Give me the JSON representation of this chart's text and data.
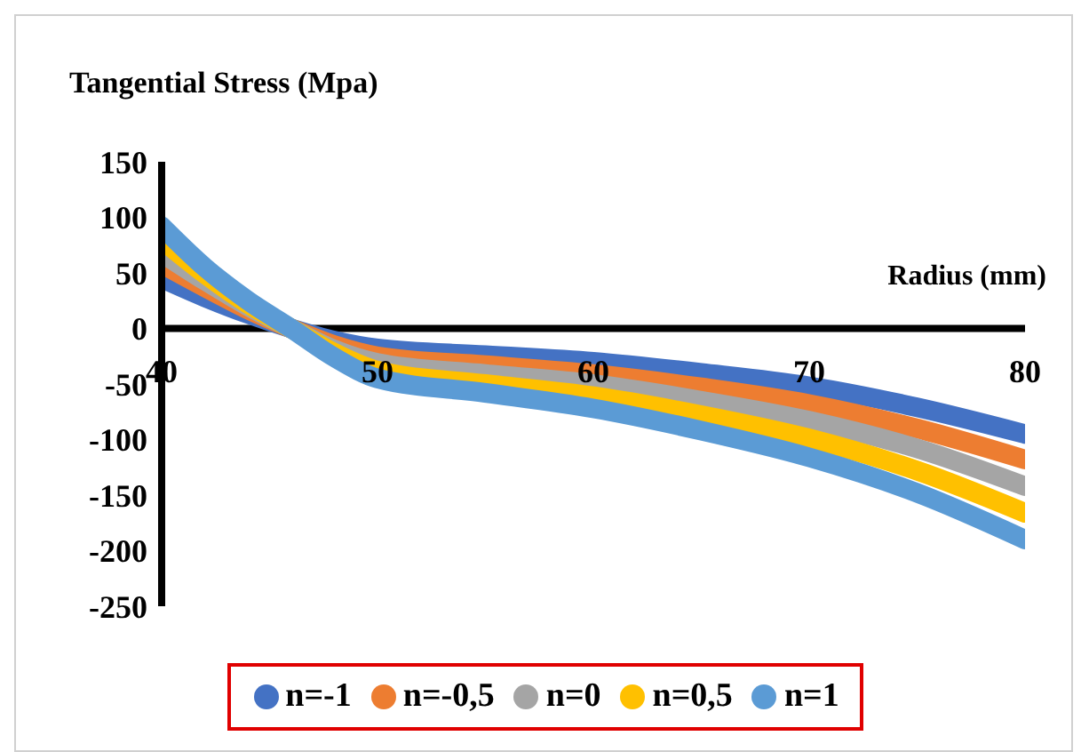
{
  "chart_data": {
    "type": "line",
    "title": "Tangential Stress (Mpa)",
    "xlabel": "Radius (mm)",
    "x": [
      40,
      42,
      44,
      46,
      48,
      50,
      55,
      60,
      65,
      70,
      75,
      80
    ],
    "series": [
      {
        "name": "n=-1",
        "color": "#4472c4",
        "values": [
          45,
          28,
          13,
          0,
          -11,
          -18,
          -24,
          -30,
          -40,
          -52,
          -71,
          -95
        ]
      },
      {
        "name": "n=-0,5",
        "color": "#ed7d31",
        "values": [
          58,
          37,
          17,
          0,
          -15,
          -25,
          -33,
          -41,
          -53,
          -68,
          -90,
          -118
        ]
      },
      {
        "name": "n=0",
        "color": "#a5a5a5",
        "values": [
          68,
          43,
          20,
          0,
          -19,
          -31,
          -41,
          -50,
          -65,
          -83,
          -108,
          -142
        ]
      },
      {
        "name": "n=0,5",
        "color": "#ffc000",
        "values": [
          80,
          49,
          22,
          0,
          -22,
          -38,
          -50,
          -61,
          -78,
          -99,
          -128,
          -166
        ]
      },
      {
        "name": "n=1",
        "color": "#5b9bd5",
        "values": [
          92,
          55,
          25,
          0,
          -26,
          -45,
          -58,
          -72,
          -92,
          -116,
          -148,
          -190
        ]
      }
    ],
    "xlim": [
      40,
      80
    ],
    "xticks": [
      40,
      50,
      60,
      70,
      80
    ],
    "ylim": [
      -250,
      150
    ],
    "yticks": [
      -250,
      -200,
      -150,
      -100,
      -50,
      0,
      50,
      100,
      150
    ],
    "grid": false,
    "legend": "bottom",
    "line_style": "solid",
    "marker": "none"
  }
}
